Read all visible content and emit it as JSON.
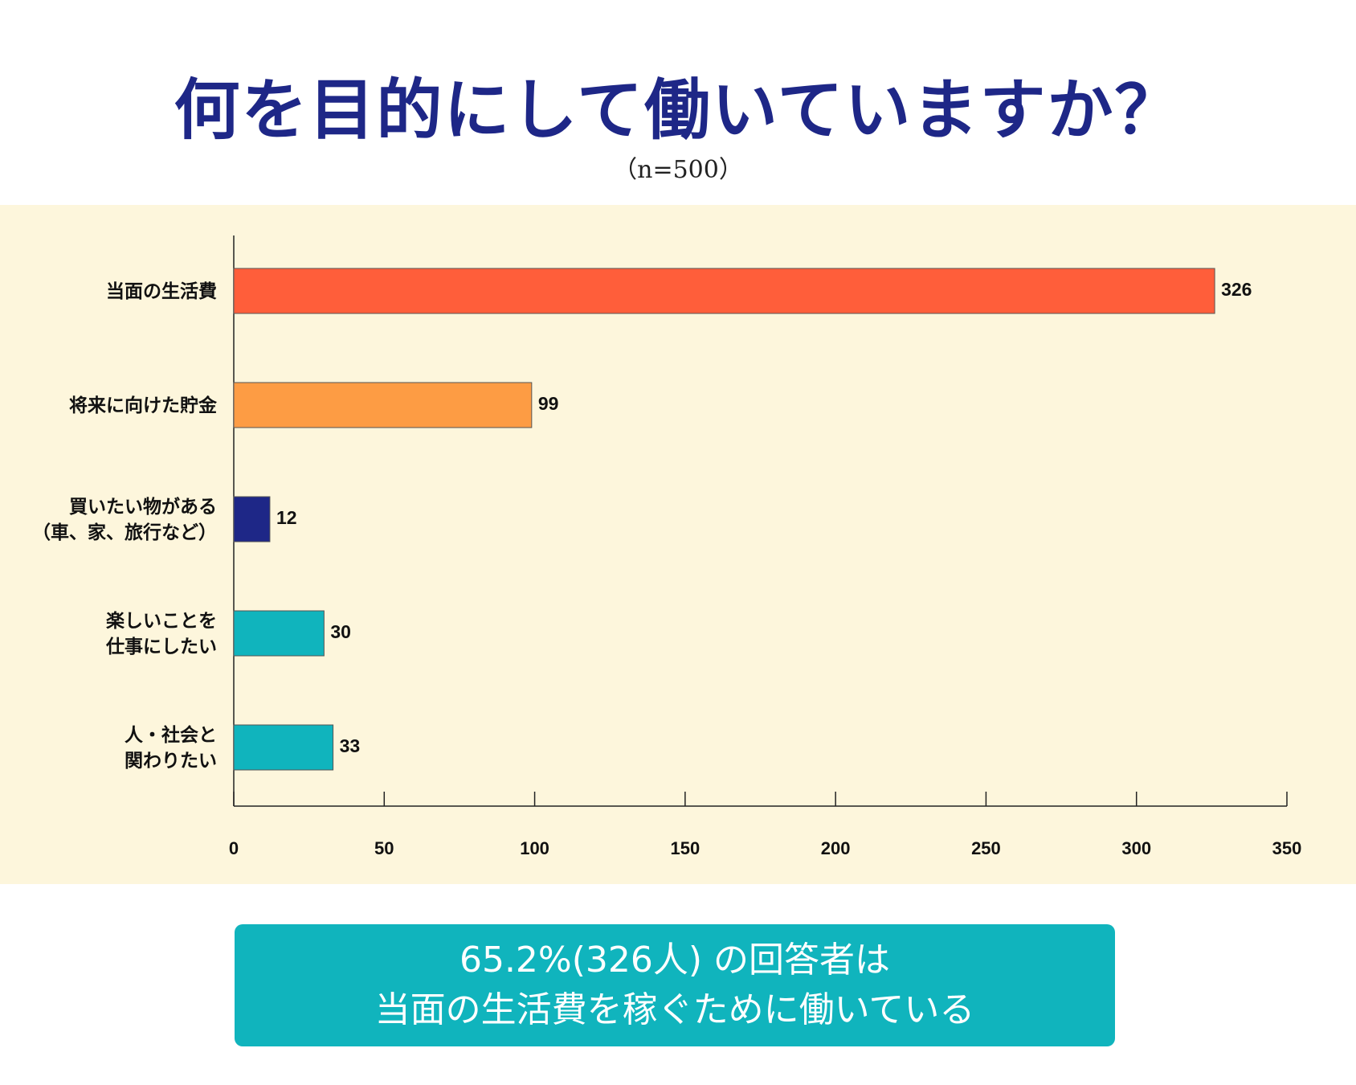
{
  "chart_data": {
    "type": "bar",
    "orientation": "horizontal",
    "title": "何を目的にして働いていますか？",
    "subtitle": "（n=500）",
    "categories": [
      [
        "当面の生活費"
      ],
      [
        "将来に向けた貯金"
      ],
      [
        "買いたい物がある",
        "（車、家、旅行など）"
      ],
      [
        "楽しいことを",
        "仕事にしたい"
      ],
      [
        "人・社会と",
        "関わりたい"
      ]
    ],
    "values": [
      326,
      99,
      12,
      30,
      33
    ],
    "colors": [
      "#ff5e3a",
      "#fd9c44",
      "#1e2787",
      "#10b4bd",
      "#10b4bd"
    ],
    "xlim": [
      0,
      350
    ],
    "xticks": [
      0,
      50,
      100,
      150,
      200,
      250,
      300,
      350
    ],
    "xlabel": "",
    "ylabel": ""
  },
  "summary": {
    "line1": "65.2%(326人) の回答者は",
    "line2": "当面の生活費を稼ぐために働いている"
  }
}
